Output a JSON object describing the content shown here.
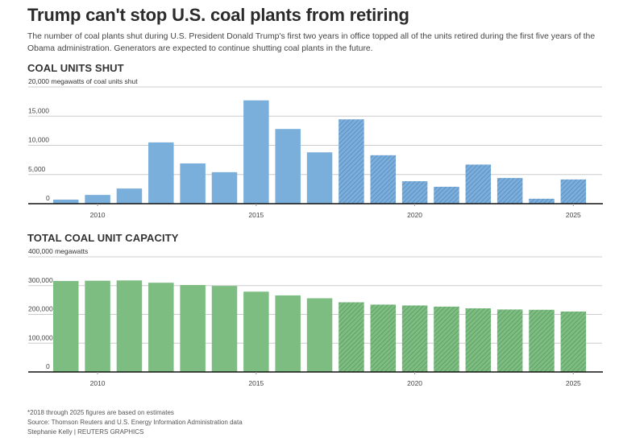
{
  "header": {
    "title": "Trump can't stop U.S. coal plants from retiring",
    "subtitle": "The number of coal plants shut during U.S. President Donald Trump's first two years in office topped all of the units retired during the first five years of the Obama administration. Generators are expected to continue shutting coal plants in the future."
  },
  "chart_data": [
    {
      "type": "bar",
      "title": "COAL UNITS SHUT",
      "ylabel": "megawatts of coal units shut",
      "top_tick_label": "20,000  megawatts of coal units shut",
      "categories": [
        2009,
        2010,
        2011,
        2012,
        2013,
        2014,
        2015,
        2016,
        2017,
        2018,
        2019,
        2020,
        2021,
        2022,
        2023,
        2024,
        2025
      ],
      "values": [
        700,
        1500,
        2600,
        10500,
        6900,
        5400,
        17700,
        12800,
        8800,
        14450,
        8300,
        3850,
        2900,
        6700,
        4400,
        850,
        4150
      ],
      "estimated_from": 2018,
      "ylim": [
        0,
        20000
      ],
      "yticks": [
        0,
        5000,
        10000,
        15000,
        20000
      ],
      "ytick_labels": [
        "0",
        "5,000",
        "10,000",
        "15,000",
        "20,000"
      ],
      "xticks": [
        2010,
        2015,
        2020,
        2025
      ],
      "xtick_labels": [
        "2010",
        "2015",
        "2020",
        "2025"
      ],
      "grid": true,
      "color": "#7aaedb",
      "hatch_color": "#5b88bd"
    },
    {
      "type": "bar",
      "title": "TOTAL COAL UNIT CAPACITY",
      "ylabel": "megawatts",
      "top_tick_label": "400,000 megawatts",
      "categories": [
        2009,
        2010,
        2011,
        2012,
        2013,
        2014,
        2015,
        2016,
        2017,
        2018,
        2019,
        2020,
        2021,
        2022,
        2023,
        2024,
        2025
      ],
      "values": [
        316000,
        317000,
        318000,
        310000,
        302000,
        299000,
        279000,
        266000,
        256000,
        242000,
        234000,
        231000,
        227000,
        221000,
        217000,
        216000,
        210000
      ],
      "estimated_from": 2018,
      "ylim": [
        0,
        400000
      ],
      "yticks": [
        0,
        100000,
        200000,
        300000,
        400000
      ],
      "ytick_labels": [
        "0",
        "100,000",
        "200,000",
        "300,000",
        "400,000"
      ],
      "xticks": [
        2010,
        2015,
        2020,
        2025
      ],
      "xtick_labels": [
        "2010",
        "2015",
        "2020",
        "2025"
      ],
      "grid": true,
      "color": "#7dbd82",
      "hatch_color": "#5a9a5f"
    }
  ],
  "footer": {
    "note": "*2018 through 2025 figures are based on estimates",
    "source": "Source: Thomson Reuters and U.S. Energy Information Administration data",
    "credit": "Stephanie Kelly    | REUTERS GRAPHICS"
  }
}
